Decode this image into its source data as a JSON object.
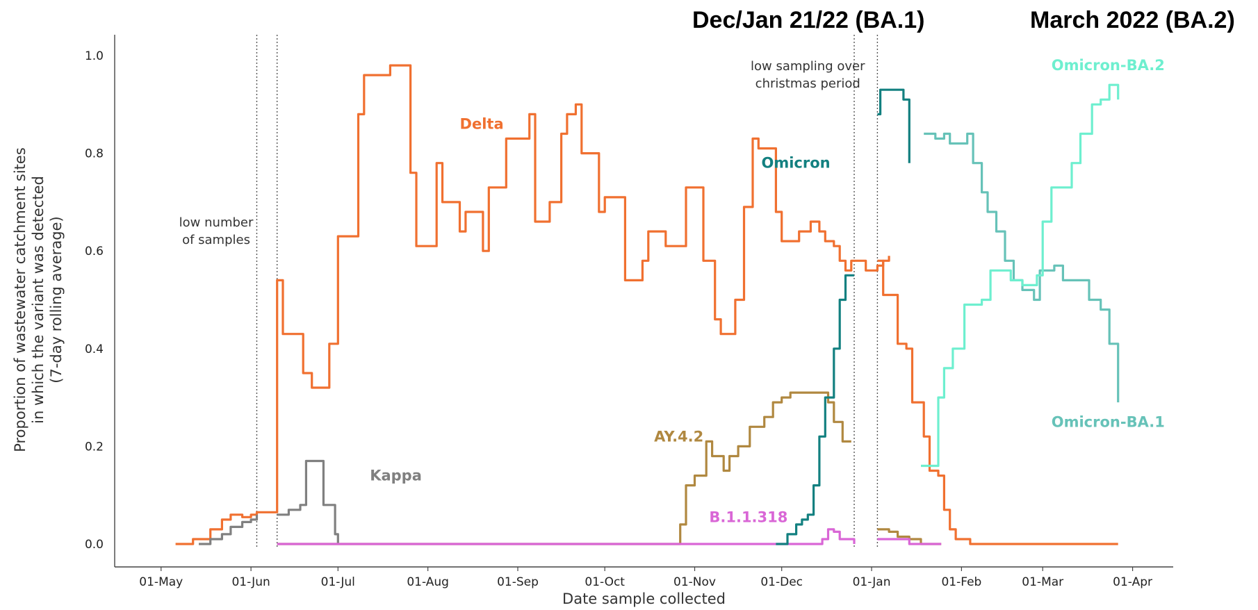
{
  "headers": {
    "left": "Dec/Jan 21/22 (BA.1)",
    "right": "March 2022 (BA.2)"
  },
  "colors": {
    "delta": "#f07030",
    "kappa": "#808080",
    "ay42": "#b08840",
    "b11318": "#d966d6",
    "omicron": "#138080",
    "ba1": "#66c2b8",
    "ba2": "#6eefcf"
  },
  "chart_data": {
    "type": "line",
    "xlabel": "Date sample collected",
    "ylabel": [
      "Proportion of wastewater catchment sites",
      "in which the variant was detected",
      "(7-day rolling average)"
    ],
    "ylim": [
      0,
      1.0
    ],
    "yticks": [
      "0.0",
      "0.2",
      "0.4",
      "0.6",
      "0.8",
      "1.0"
    ],
    "xlim": [
      "2021-04-15",
      "2022-04-15"
    ],
    "xticks": [
      {
        "date": "2021-05-01",
        "label": "01-May"
      },
      {
        "date": "2021-06-01",
        "label": "01-Jun"
      },
      {
        "date": "2021-07-01",
        "label": "01-Jul"
      },
      {
        "date": "2021-08-01",
        "label": "01-Aug"
      },
      {
        "date": "2021-09-01",
        "label": "01-Sep"
      },
      {
        "date": "2021-10-01",
        "label": "01-Oct"
      },
      {
        "date": "2021-11-01",
        "label": "01-Nov"
      },
      {
        "date": "2021-12-01",
        "label": "01-Dec"
      },
      {
        "date": "2022-01-01",
        "label": "01-Jan"
      },
      {
        "date": "2022-02-01",
        "label": "01-Feb"
      },
      {
        "date": "2022-03-01",
        "label": "01-Mar"
      },
      {
        "date": "2022-04-01",
        "label": "01-Apr"
      }
    ],
    "grid": false,
    "vlines": [
      "2021-06-03",
      "2021-06-10",
      "2021-12-26",
      "2022-01-03"
    ],
    "annotations": [
      {
        "text": [
          "low number",
          "of samples"
        ],
        "date": "2021-05-20",
        "y": 0.65
      },
      {
        "text": [
          "low sampling over",
          "christmas period"
        ],
        "date": "2021-12-10",
        "y": 0.97
      }
    ],
    "series": [
      {
        "name": "Delta",
        "key": "delta",
        "label_at": {
          "date": "2021-08-12",
          "y": 0.85
        },
        "points": [
          [
            "2021-05-06",
            0.0
          ],
          [
            "2021-05-12",
            0.01
          ],
          [
            "2021-05-18",
            0.03
          ],
          [
            "2021-05-22",
            0.05
          ],
          [
            "2021-05-25",
            0.06
          ],
          [
            "2021-05-29",
            0.055
          ],
          [
            "2021-06-01",
            0.06
          ],
          [
            "2021-06-03",
            0.065
          ],
          [
            "2021-06-10",
            0.54
          ],
          [
            "2021-06-12",
            0.43
          ],
          [
            "2021-06-17",
            0.43
          ],
          [
            "2021-06-19",
            0.35
          ],
          [
            "2021-06-22",
            0.32
          ],
          [
            "2021-06-26",
            0.32
          ],
          [
            "2021-06-28",
            0.41
          ],
          [
            "2021-07-01",
            0.63
          ],
          [
            "2021-07-05",
            0.63
          ],
          [
            "2021-07-08",
            0.88
          ],
          [
            "2021-07-10",
            0.96
          ],
          [
            "2021-07-17",
            0.96
          ],
          [
            "2021-07-19",
            0.98
          ],
          [
            "2021-07-23",
            0.98
          ],
          [
            "2021-07-26",
            0.76
          ],
          [
            "2021-07-28",
            0.61
          ],
          [
            "2021-08-02",
            0.61
          ],
          [
            "2021-08-04",
            0.78
          ],
          [
            "2021-08-06",
            0.7
          ],
          [
            "2021-08-10",
            0.7
          ],
          [
            "2021-08-12",
            0.64
          ],
          [
            "2021-08-14",
            0.68
          ],
          [
            "2021-08-18",
            0.68
          ],
          [
            "2021-08-20",
            0.6
          ],
          [
            "2021-08-22",
            0.73
          ],
          [
            "2021-08-26",
            0.73
          ],
          [
            "2021-08-28",
            0.83
          ],
          [
            "2021-09-03",
            0.83
          ],
          [
            "2021-09-05",
            0.88
          ],
          [
            "2021-09-07",
            0.66
          ],
          [
            "2021-09-10",
            0.66
          ],
          [
            "2021-09-12",
            0.7
          ],
          [
            "2021-09-14",
            0.7
          ],
          [
            "2021-09-16",
            0.84
          ],
          [
            "2021-09-18",
            0.88
          ],
          [
            "2021-09-21",
            0.9
          ],
          [
            "2021-09-23",
            0.8
          ],
          [
            "2021-09-27",
            0.8
          ],
          [
            "2021-09-29",
            0.68
          ],
          [
            "2021-10-01",
            0.71
          ],
          [
            "2021-10-06",
            0.71
          ],
          [
            "2021-10-08",
            0.54
          ],
          [
            "2021-10-12",
            0.54
          ],
          [
            "2021-10-14",
            0.58
          ],
          [
            "2021-10-16",
            0.64
          ],
          [
            "2021-10-19",
            0.64
          ],
          [
            "2021-10-22",
            0.61
          ],
          [
            "2021-10-27",
            0.61
          ],
          [
            "2021-10-29",
            0.73
          ],
          [
            "2021-11-02",
            0.73
          ],
          [
            "2021-11-04",
            0.58
          ],
          [
            "2021-11-06",
            0.58
          ],
          [
            "2021-11-08",
            0.46
          ],
          [
            "2021-11-10",
            0.43
          ],
          [
            "2021-11-13",
            0.43
          ],
          [
            "2021-11-15",
            0.5
          ],
          [
            "2021-11-18",
            0.69
          ],
          [
            "2021-11-21",
            0.83
          ],
          [
            "2021-11-23",
            0.81
          ],
          [
            "2021-11-27",
            0.81
          ],
          [
            "2021-11-29",
            0.68
          ],
          [
            "2021-12-01",
            0.62
          ],
          [
            "2021-12-05",
            0.62
          ],
          [
            "2021-12-07",
            0.64
          ],
          [
            "2021-12-09",
            0.64
          ],
          [
            "2021-12-11",
            0.66
          ],
          [
            "2021-12-14",
            0.64
          ],
          [
            "2021-12-16",
            0.62
          ],
          [
            "2021-12-19",
            0.61
          ],
          [
            "2021-12-21",
            0.58
          ],
          [
            "2021-12-23",
            0.56
          ],
          [
            "2021-12-25",
            0.58
          ],
          [
            "2021-12-28",
            0.58
          ],
          [
            "2021-12-30",
            0.56
          ],
          [
            "2022-01-03",
            0.57
          ],
          [
            "2022-01-05",
            0.58
          ],
          [
            "2022-01-07",
            0.59
          ]
        ]
      },
      {
        "name": "",
        "key": "delta",
        "points": [
          [
            "2022-01-03",
            0.58
          ],
          [
            "2022-01-05",
            0.51
          ],
          [
            "2022-01-08",
            0.51
          ],
          [
            "2022-01-10",
            0.41
          ],
          [
            "2022-01-13",
            0.4
          ],
          [
            "2022-01-15",
            0.29
          ],
          [
            "2022-01-17",
            0.29
          ],
          [
            "2022-01-19",
            0.22
          ],
          [
            "2022-01-21",
            0.15
          ],
          [
            "2022-01-24",
            0.14
          ],
          [
            "2022-01-26",
            0.07
          ],
          [
            "2022-01-28",
            0.03
          ],
          [
            "2022-01-30",
            0.01
          ],
          [
            "2022-02-04",
            0.0
          ],
          [
            "2022-03-15",
            0.0
          ],
          [
            "2022-03-27",
            0.0
          ]
        ]
      },
      {
        "name": "Kappa",
        "key": "kappa",
        "label_at": {
          "date": "2021-07-12",
          "y": 0.13
        },
        "points": [
          [
            "2021-05-14",
            0.0
          ],
          [
            "2021-05-18",
            0.01
          ],
          [
            "2021-05-22",
            0.02
          ],
          [
            "2021-05-25",
            0.035
          ],
          [
            "2021-05-29",
            0.045
          ],
          [
            "2021-06-01",
            0.05
          ],
          [
            "2021-06-03",
            0.06
          ]
        ]
      },
      {
        "name": "",
        "key": "kappa",
        "points": [
          [
            "2021-06-10",
            0.06
          ],
          [
            "2021-06-14",
            0.07
          ],
          [
            "2021-06-18",
            0.08
          ],
          [
            "2021-06-20",
            0.17
          ],
          [
            "2021-06-24",
            0.17
          ],
          [
            "2021-06-26",
            0.08
          ],
          [
            "2021-06-28",
            0.08
          ],
          [
            "2021-06-30",
            0.02
          ],
          [
            "2021-07-01",
            0.0
          ]
        ]
      },
      {
        "name": "AY.4.2",
        "key": "ay42",
        "label_at": {
          "date": "2021-10-18",
          "y": 0.21
        },
        "points": [
          [
            "2021-06-10",
            0.0
          ],
          [
            "2021-10-25",
            0.0
          ],
          [
            "2021-10-27",
            0.04
          ],
          [
            "2021-10-29",
            0.12
          ],
          [
            "2021-11-01",
            0.14
          ],
          [
            "2021-11-03",
            0.14
          ],
          [
            "2021-11-05",
            0.21
          ],
          [
            "2021-11-07",
            0.18
          ],
          [
            "2021-11-09",
            0.18
          ],
          [
            "2021-11-11",
            0.15
          ],
          [
            "2021-11-13",
            0.18
          ],
          [
            "2021-11-16",
            0.2
          ],
          [
            "2021-11-18",
            0.2
          ],
          [
            "2021-11-20",
            0.24
          ],
          [
            "2021-11-23",
            0.24
          ],
          [
            "2021-11-25",
            0.26
          ],
          [
            "2021-11-28",
            0.29
          ],
          [
            "2021-12-01",
            0.3
          ],
          [
            "2021-12-04",
            0.31
          ],
          [
            "2021-12-07",
            0.31
          ],
          [
            "2021-12-10",
            0.31
          ],
          [
            "2021-12-14",
            0.31
          ],
          [
            "2021-12-17",
            0.29
          ],
          [
            "2021-12-19",
            0.25
          ],
          [
            "2021-12-22",
            0.21
          ],
          [
            "2021-12-25",
            0.21
          ]
        ]
      },
      {
        "name": "",
        "key": "ay42",
        "points": [
          [
            "2022-01-03",
            0.03
          ],
          [
            "2022-01-07",
            0.025
          ],
          [
            "2022-01-10",
            0.015
          ],
          [
            "2022-01-14",
            0.01
          ],
          [
            "2022-01-18",
            0.0
          ],
          [
            "2022-01-25",
            0.0
          ]
        ]
      },
      {
        "name": "B.1.1.318",
        "key": "b11318",
        "label_at": {
          "date": "2021-11-06",
          "y": 0.045
        },
        "points": [
          [
            "2021-06-10",
            0.0
          ],
          [
            "2021-12-12",
            0.0
          ],
          [
            "2021-12-15",
            0.01
          ],
          [
            "2021-12-17",
            0.03
          ],
          [
            "2021-12-19",
            0.025
          ],
          [
            "2021-12-21",
            0.01
          ],
          [
            "2021-12-26",
            0.0
          ]
        ]
      },
      {
        "name": "",
        "key": "b11318",
        "points": [
          [
            "2022-01-03",
            0.01
          ],
          [
            "2022-01-14",
            0.0
          ],
          [
            "2022-01-25",
            0.0
          ]
        ]
      },
      {
        "name": "Omicron",
        "key": "omicron",
        "label_at": {
          "date": "2021-11-24",
          "y": 0.77
        },
        "points": [
          [
            "2021-11-29",
            0.0
          ],
          [
            "2021-12-03",
            0.02
          ],
          [
            "2021-12-06",
            0.04
          ],
          [
            "2021-12-08",
            0.05
          ],
          [
            "2021-12-10",
            0.06
          ],
          [
            "2021-12-12",
            0.12
          ],
          [
            "2021-12-14",
            0.22
          ],
          [
            "2021-12-16",
            0.3
          ],
          [
            "2021-12-19",
            0.4
          ],
          [
            "2021-12-21",
            0.5
          ],
          [
            "2021-12-23",
            0.55
          ],
          [
            "2021-12-26",
            0.55
          ]
        ]
      },
      {
        "name": "",
        "key": "omicron",
        "points": [
          [
            "2022-01-03",
            0.88
          ],
          [
            "2022-01-04",
            0.93
          ],
          [
            "2022-01-10",
            0.93
          ],
          [
            "2022-01-12",
            0.91
          ],
          [
            "2022-01-14",
            0.78
          ]
        ]
      },
      {
        "name": "Omicron-BA.1",
        "key": "ba1",
        "label_at": {
          "date": "2022-03-04",
          "y": 0.24
        },
        "points": [
          [
            "2022-01-19",
            0.84
          ],
          [
            "2022-01-23",
            0.83
          ],
          [
            "2022-01-26",
            0.84
          ],
          [
            "2022-01-28",
            0.82
          ],
          [
            "2022-02-03",
            0.84
          ],
          [
            "2022-02-05",
            0.78
          ],
          [
            "2022-02-08",
            0.72
          ],
          [
            "2022-02-10",
            0.68
          ],
          [
            "2022-02-13",
            0.64
          ],
          [
            "2022-02-16",
            0.58
          ],
          [
            "2022-02-19",
            0.54
          ],
          [
            "2022-02-22",
            0.52
          ],
          [
            "2022-02-26",
            0.5
          ],
          [
            "2022-02-28",
            0.56
          ],
          [
            "2022-03-05",
            0.57
          ],
          [
            "2022-03-08",
            0.54
          ],
          [
            "2022-03-13",
            0.54
          ],
          [
            "2022-03-17",
            0.5
          ],
          [
            "2022-03-21",
            0.48
          ],
          [
            "2022-03-24",
            0.41
          ],
          [
            "2022-03-27",
            0.29
          ]
        ]
      },
      {
        "name": "Omicron-BA.2",
        "key": "ba2",
        "label_at": {
          "date": "2022-03-04",
          "y": 0.97
        },
        "points": [
          [
            "2022-01-18",
            0.16
          ],
          [
            "2022-01-21",
            0.16
          ],
          [
            "2022-01-24",
            0.3
          ],
          [
            "2022-01-26",
            0.36
          ],
          [
            "2022-01-29",
            0.4
          ],
          [
            "2022-02-02",
            0.49
          ],
          [
            "2022-02-08",
            0.5
          ],
          [
            "2022-02-11",
            0.56
          ],
          [
            "2022-02-15",
            0.56
          ],
          [
            "2022-02-18",
            0.54
          ],
          [
            "2022-02-22",
            0.53
          ],
          [
            "2022-02-27",
            0.55
          ],
          [
            "2022-03-01",
            0.66
          ],
          [
            "2022-03-04",
            0.73
          ],
          [
            "2022-03-08",
            0.73
          ],
          [
            "2022-03-11",
            0.78
          ],
          [
            "2022-03-14",
            0.84
          ],
          [
            "2022-03-18",
            0.9
          ],
          [
            "2022-03-21",
            0.91
          ],
          [
            "2022-03-24",
            0.94
          ],
          [
            "2022-03-27",
            0.91
          ]
        ]
      }
    ]
  }
}
